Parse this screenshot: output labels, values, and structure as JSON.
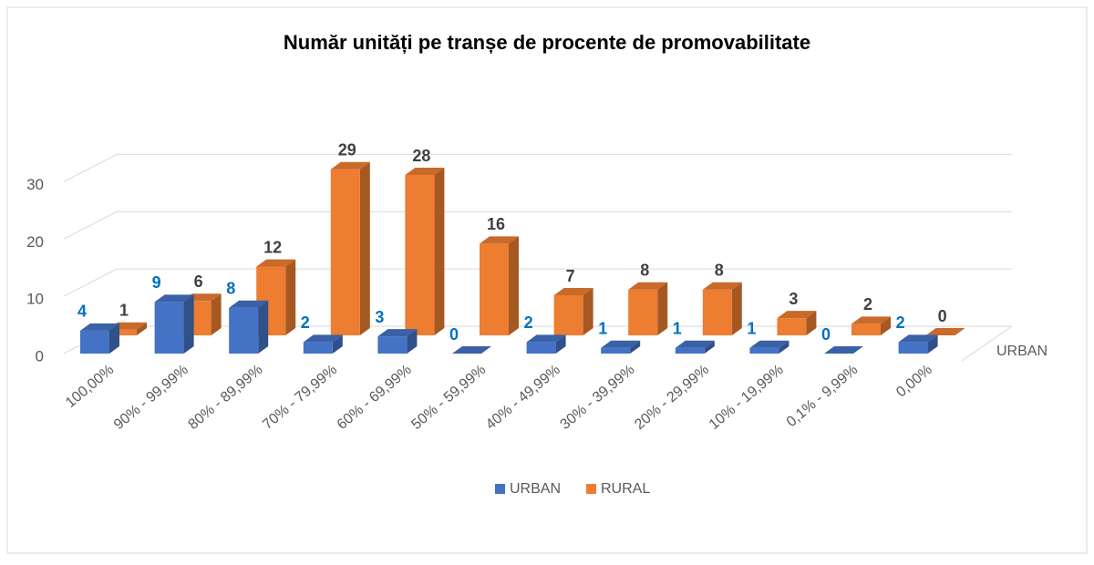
{
  "chart_data": {
    "type": "bar",
    "title": "Număr unități pe tranșe de procente de promovabilitate",
    "categories": [
      "100,00%",
      "90% - 99,99%",
      "80% - 89,99%",
      "70% - 79,99%",
      "60% - 69,99%",
      "50% - 59,99%",
      "40% - 49,99%",
      "30% - 39,99%",
      "20% - 29,99%",
      "10% - 19,99%",
      "0,1% - 9,99%",
      "0,00%"
    ],
    "series": [
      {
        "name": "URBAN",
        "color": "#4472c4",
        "values": [
          4,
          9,
          8,
          2,
          3,
          0,
          2,
          1,
          1,
          1,
          0,
          2
        ]
      },
      {
        "name": "RURAL",
        "color": "#ed7d31",
        "values": [
          1,
          6,
          12,
          29,
          28,
          16,
          7,
          8,
          8,
          3,
          2,
          0
        ]
      }
    ],
    "depth_axis_label": "URBAN",
    "ylim": [
      0,
      35
    ],
    "yticks": [
      0,
      10,
      20,
      30
    ],
    "grid": true,
    "legend": "bottom"
  }
}
